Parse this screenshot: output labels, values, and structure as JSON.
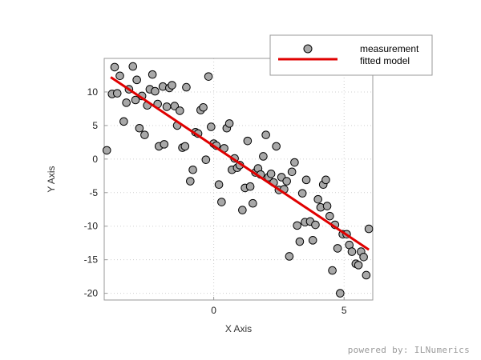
{
  "chart_data": {
    "type": "scatter",
    "title": "",
    "xlabel": "X Axis",
    "ylabel": "Y Axis",
    "xlim": [
      -4.2,
      6.1
    ],
    "ylim": [
      -21,
      15
    ],
    "x_ticks": [
      0,
      5
    ],
    "y_ticks": [
      10,
      5,
      0,
      -5,
      -10,
      -15,
      -20
    ],
    "grid": true,
    "legend_position": "top-right",
    "series": [
      {
        "name": "measurement",
        "kind": "scatter",
        "color": "#a8a8a8",
        "points": [
          [
            -4.1,
            1.3
          ],
          [
            -3.9,
            9.7
          ],
          [
            -3.8,
            13.7
          ],
          [
            -3.7,
            9.8
          ],
          [
            -3.6,
            12.4
          ],
          [
            -3.45,
            5.6
          ],
          [
            -3.35,
            8.4
          ],
          [
            -3.25,
            10.4
          ],
          [
            -3.1,
            13.8
          ],
          [
            -3.0,
            8.8
          ],
          [
            -2.95,
            11.8
          ],
          [
            -2.85,
            4.6
          ],
          [
            -2.75,
            9.4
          ],
          [
            -2.65,
            3.6
          ],
          [
            -2.55,
            8.0
          ],
          [
            -2.45,
            10.4
          ],
          [
            -2.35,
            12.6
          ],
          [
            -2.25,
            10.1
          ],
          [
            -2.15,
            8.2
          ],
          [
            -2.1,
            1.9
          ],
          [
            -1.95,
            10.8
          ],
          [
            -1.9,
            2.2
          ],
          [
            -1.8,
            7.8
          ],
          [
            -1.7,
            10.6
          ],
          [
            -1.6,
            11.0
          ],
          [
            -1.5,
            7.9
          ],
          [
            -1.4,
            5.0
          ],
          [
            -1.3,
            7.2
          ],
          [
            -1.2,
            1.7
          ],
          [
            -1.1,
            1.9
          ],
          [
            -1.05,
            10.7
          ],
          [
            -0.9,
            -3.3
          ],
          [
            -0.8,
            -1.6
          ],
          [
            -0.7,
            4.0
          ],
          [
            -0.6,
            3.8
          ],
          [
            -0.5,
            7.3
          ],
          [
            -0.4,
            7.7
          ],
          [
            -0.3,
            -0.1
          ],
          [
            -0.2,
            12.3
          ],
          [
            -0.1,
            4.8
          ],
          [
            0.0,
            2.3
          ],
          [
            0.1,
            2.0
          ],
          [
            0.2,
            -3.8
          ],
          [
            0.3,
            -6.4
          ],
          [
            0.4,
            1.6
          ],
          [
            0.5,
            4.6
          ],
          [
            0.6,
            5.3
          ],
          [
            0.7,
            -1.6
          ],
          [
            0.8,
            0.1
          ],
          [
            0.9,
            -1.3
          ],
          [
            1.0,
            -0.9
          ],
          [
            1.1,
            -7.6
          ],
          [
            1.2,
            -4.3
          ],
          [
            1.3,
            2.7
          ],
          [
            1.4,
            -4.1
          ],
          [
            1.5,
            -6.6
          ],
          [
            1.6,
            -2.0
          ],
          [
            1.7,
            -1.4
          ],
          [
            1.8,
            -2.3
          ],
          [
            1.9,
            0.4
          ],
          [
            2.0,
            3.6
          ],
          [
            2.1,
            -2.7
          ],
          [
            2.2,
            -2.2
          ],
          [
            2.3,
            -3.5
          ],
          [
            2.4,
            1.9
          ],
          [
            2.5,
            -4.6
          ],
          [
            2.6,
            -2.7
          ],
          [
            2.7,
            -4.5
          ],
          [
            2.8,
            -3.3
          ],
          [
            2.9,
            -14.5
          ],
          [
            3.0,
            -1.9
          ],
          [
            3.1,
            -0.5
          ],
          [
            3.2,
            -9.9
          ],
          [
            3.3,
            -12.3
          ],
          [
            3.4,
            -5.1
          ],
          [
            3.5,
            -9.4
          ],
          [
            3.55,
            -3.1
          ],
          [
            3.7,
            -9.3
          ],
          [
            3.8,
            -12.1
          ],
          [
            3.9,
            -9.8
          ],
          [
            4.0,
            -6.0
          ],
          [
            4.1,
            -7.2
          ],
          [
            4.2,
            -3.8
          ],
          [
            4.3,
            -3.1
          ],
          [
            4.35,
            -7.0
          ],
          [
            4.45,
            -8.5
          ],
          [
            4.55,
            -16.6
          ],
          [
            4.65,
            -9.8
          ],
          [
            4.75,
            -13.3
          ],
          [
            4.85,
            -20.0
          ],
          [
            4.95,
            -11.2
          ],
          [
            5.1,
            -11.2
          ],
          [
            5.2,
            -12.8
          ],
          [
            5.3,
            -13.8
          ],
          [
            5.45,
            -15.6
          ],
          [
            5.55,
            -15.8
          ],
          [
            5.65,
            -13.8
          ],
          [
            5.75,
            -14.6
          ],
          [
            5.85,
            -17.3
          ],
          [
            5.95,
            -10.4
          ]
        ]
      },
      {
        "name": "fitted model",
        "kind": "line",
        "color": "#e00000",
        "points": [
          [
            -3.95,
            12.2
          ],
          [
            5.95,
            -13.5
          ]
        ]
      }
    ],
    "footer": "powered by: ILNumerics"
  }
}
